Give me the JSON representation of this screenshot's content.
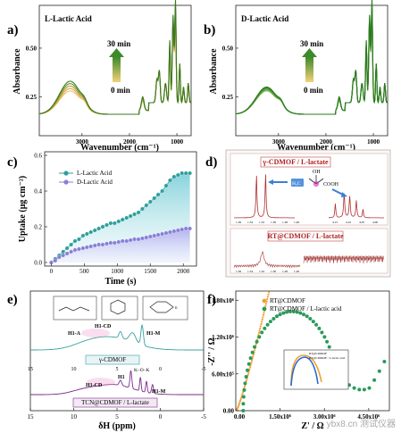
{
  "panels": {
    "a": {
      "letter": "a)",
      "label": "L-Lactic Acid",
      "time_top": "30 min",
      "time_bottom": "0 min"
    },
    "b": {
      "letter": "b)",
      "label": "D-Lactic Acid",
      "time_top": "30 min",
      "time_bottom": "0 min"
    },
    "c": {
      "letter": "c)"
    },
    "d": {
      "letter": "d)",
      "box1_title": "γ-CDMOF / L-lactate",
      "box2_title": "RT@CDMOF / L-lactate",
      "ppm": "/ppm"
    },
    "e": {
      "letter": "e)",
      "trace1": "γ-CDMOF",
      "trace2": "TCN@CDMOF / L-lactate",
      "peaks1": [
        "H1-A",
        "H1-CD",
        "H1-M"
      ],
      "peaks2": [
        "H1-CD",
        "H1",
        "H1-M"
      ]
    },
    "f": {
      "letter": "f)",
      "inset_legend": [
        "RT@CDMOF",
        "RT@CDMOF / L-lactic acid"
      ]
    }
  },
  "watermark": "ybx8.cn 测试仪器",
  "chart_data": [
    {
      "id": "a",
      "type": "line",
      "title": "",
      "xlabel": "Wavenumber (cm⁻¹)",
      "ylabel": "Absorbance",
      "xlim": [
        3900,
        700
      ],
      "ylim": [
        0.05,
        0.72
      ],
      "xticks": [
        3000,
        2000,
        1000
      ],
      "yticks": [
        0.25,
        0.5
      ],
      "series_count": 5,
      "colors": [
        "#f0c060",
        "#d8a84a",
        "#b0a040",
        "#70902a",
        "#3a7a20"
      ],
      "annotation": "arrow from 0 min to 30 min"
    },
    {
      "id": "b",
      "type": "line",
      "title": "",
      "xlabel": "Wavenumber (cm⁻¹)",
      "ylabel": "Absorbance",
      "xlim": [
        3900,
        700
      ],
      "ylim": [
        0.05,
        0.72
      ],
      "xticks": [
        3000,
        2000,
        1000
      ],
      "yticks": [
        0.25,
        0.5
      ],
      "series_count": 5,
      "colors": [
        "#8fbf60",
        "#6aa845",
        "#4f9a38",
        "#3a8a2a",
        "#2a7a1e"
      ]
    },
    {
      "id": "c",
      "type": "scatter",
      "xlabel": "Time (s)",
      "ylabel": "Uptake (μg cm⁻²)",
      "xlim": [
        -100,
        2200
      ],
      "ylim": [
        -0.02,
        0.62
      ],
      "xticks": [
        0,
        500,
        1000,
        1500,
        2000
      ],
      "yticks": [
        0.0,
        0.2,
        0.4,
        0.6
      ],
      "series": [
        {
          "name": "L-Lactic Acid",
          "color": "#2e9f9a",
          "x": [
            0,
            60,
            120,
            180,
            240,
            300,
            360,
            420,
            480,
            540,
            600,
            660,
            720,
            780,
            840,
            900,
            960,
            1020,
            1080,
            1140,
            1200,
            1260,
            1320,
            1380,
            1440,
            1500,
            1560,
            1620,
            1680,
            1740,
            1800,
            1860,
            1920,
            1980,
            2040,
            2100
          ],
          "y": [
            0.0,
            0.02,
            0.04,
            0.06,
            0.08,
            0.1,
            0.12,
            0.13,
            0.15,
            0.16,
            0.17,
            0.18,
            0.19,
            0.2,
            0.21,
            0.22,
            0.22,
            0.23,
            0.24,
            0.25,
            0.26,
            0.27,
            0.28,
            0.3,
            0.32,
            0.34,
            0.36,
            0.38,
            0.4,
            0.43,
            0.46,
            0.48,
            0.49,
            0.5,
            0.5,
            0.5
          ]
        },
        {
          "name": "D-Lactic Acid",
          "color": "#8a7fd6",
          "x": [
            0,
            60,
            120,
            180,
            240,
            300,
            360,
            420,
            480,
            540,
            600,
            660,
            720,
            780,
            840,
            900,
            960,
            1020,
            1080,
            1140,
            1200,
            1260,
            1320,
            1380,
            1440,
            1500,
            1560,
            1620,
            1680,
            1740,
            1800,
            1860,
            1920,
            1980,
            2040,
            2100
          ],
          "y": [
            0.0,
            0.01,
            0.03,
            0.04,
            0.05,
            0.06,
            0.07,
            0.075,
            0.08,
            0.085,
            0.09,
            0.095,
            0.1,
            0.1,
            0.105,
            0.11,
            0.11,
            0.115,
            0.12,
            0.12,
            0.125,
            0.13,
            0.13,
            0.135,
            0.14,
            0.145,
            0.15,
            0.155,
            0.16,
            0.165,
            0.17,
            0.175,
            0.18,
            0.185,
            0.19,
            0.19
          ]
        }
      ]
    },
    {
      "id": "d",
      "type": "line",
      "xticks_top": [
        "1.36",
        "1.34",
        "1.32",
        "1.30",
        "1.28",
        "1.26"
      ],
      "xticks_top_right": [
        "4.15",
        "4.10",
        "4.05",
        "4.00"
      ],
      "xticks_bottom": [
        "1.36",
        "1.34",
        "1.32",
        "1.30",
        "1.28",
        "1.26"
      ]
    },
    {
      "id": "e",
      "type": "line",
      "xlabel": "δH (ppm)",
      "xlim": [
        15,
        -5
      ],
      "xticks": [
        15,
        10,
        5,
        0,
        -5
      ],
      "series": [
        {
          "name": "γ-CDMOF",
          "color": "#3aa0a0"
        },
        {
          "name": "TCN@CDMOF / L-lactate",
          "color": "#7a2a8a"
        }
      ]
    },
    {
      "id": "f",
      "type": "scatter",
      "xlabel": "Z' / Ω",
      "ylabel": "-Z'' / Ω",
      "xlim": [
        0,
        5200000
      ],
      "ylim": [
        0,
        1950000
      ],
      "xticks": [
        "0.00",
        "1.50x10⁶",
        "3.00x10⁶",
        "4.50x10⁶"
      ],
      "yticks": [
        "0.00",
        "6.00x10⁵",
        "1.20x10⁶",
        "1.80x10⁶"
      ],
      "series": [
        {
          "name": "RT@CDMOF",
          "color": "#f0a030"
        },
        {
          "name": "RT@CDMOF / L-lactic acid",
          "color": "#2a9a5a"
        }
      ]
    }
  ]
}
